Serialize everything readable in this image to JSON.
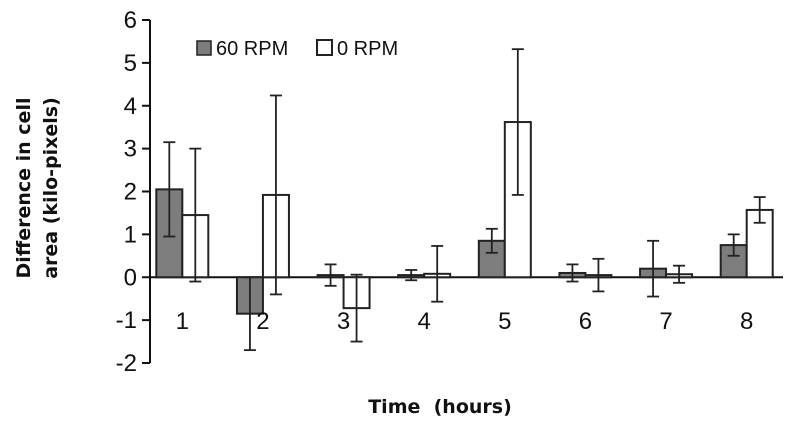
{
  "chart_data": {
    "type": "bar",
    "title": "",
    "xlabel": "Time  (hours)",
    "ylabel": [
      "Difference in cell",
      "area (kilo-pixels)"
    ],
    "ylim": [
      -2,
      6
    ],
    "yticks": [
      "-2",
      "-1",
      "0",
      "1",
      "2",
      "3",
      "4",
      "5",
      "6"
    ],
    "categories": [
      "1",
      "2",
      "3",
      "4",
      "5",
      "6",
      "7",
      "8"
    ],
    "grid": false,
    "legend_position": "top-left",
    "series": [
      {
        "name": "60 RPM",
        "color": "#7d7d7d",
        "values": [
          2.05,
          -0.85,
          0.05,
          0.05,
          0.85,
          0.1,
          0.2,
          0.75
        ],
        "errors": [
          1.1,
          0.85,
          0.25,
          0.12,
          0.28,
          0.2,
          0.65,
          0.25
        ]
      },
      {
        "name": "0 RPM",
        "color": "#ffffff",
        "values": [
          1.45,
          1.92,
          -0.72,
          0.08,
          3.62,
          0.05,
          0.07,
          1.57
        ],
        "errors": [
          1.55,
          2.32,
          0.78,
          0.65,
          1.7,
          0.38,
          0.2,
          0.3
        ]
      }
    ]
  }
}
